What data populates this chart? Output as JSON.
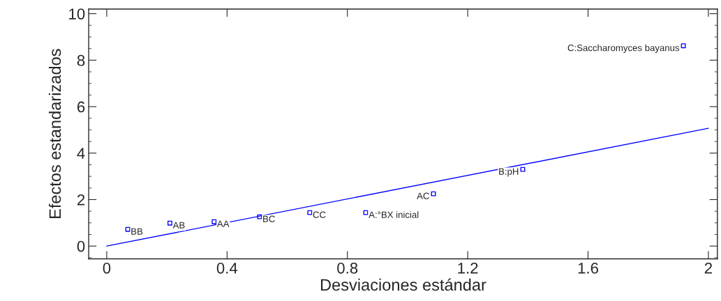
{
  "chart_data": {
    "type": "scatter",
    "xlabel": "Desviaciones estándar",
    "ylabel": "Efectos estandarizados",
    "xlim": [
      -0.06,
      2.03
    ],
    "ylim": [
      -0.55,
      10.2
    ],
    "xticks": [
      0,
      0.4,
      0.8,
      1.2,
      1.6,
      2
    ],
    "yticks": [
      0,
      2,
      4,
      6,
      8,
      10
    ],
    "grid": false,
    "legend": false,
    "series": [
      {
        "color": "#0000ff",
        "marker": "square",
        "x": [
          0.07,
          0.21,
          0.357,
          0.508,
          0.675,
          0.861,
          1.086,
          1.383,
          1.917
        ],
        "values": [
          0.72,
          0.99,
          1.05,
          1.26,
          1.44,
          1.44,
          2.25,
          3.3,
          8.62
        ]
      },
      {
        "type": "line",
        "color": "#0000ff",
        "line_style": "solid",
        "x": [
          0,
          2
        ],
        "values": [
          0,
          5.07
        ]
      }
    ],
    "annotations": [
      {
        "text": "BB",
        "x": 0.07,
        "y": 0.72
      },
      {
        "text": "AB",
        "x": 0.21,
        "y": 0.99
      },
      {
        "text": "AA",
        "x": 0.357,
        "y": 1.05
      },
      {
        "text": "BC",
        "x": 0.508,
        "y": 1.26
      },
      {
        "text": "CC",
        "x": 0.675,
        "y": 1.44
      },
      {
        "text": "A:°BX inicial",
        "x": 0.861,
        "y": 1.44
      },
      {
        "text": "AC",
        "x": 1.086,
        "y": 2.25
      },
      {
        "text": "B:pH",
        "x": 1.383,
        "y": 3.3
      },
      {
        "text": "C:Saccharomyces bayanus",
        "x": 1.917,
        "y": 8.62
      }
    ]
  }
}
